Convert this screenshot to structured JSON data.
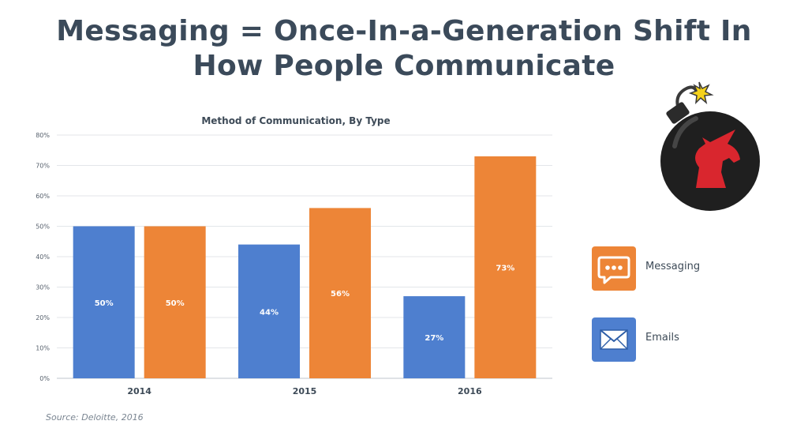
{
  "headline": {
    "line1": "Messaging = Once-In-a-Generation Shift In",
    "line2": "How People Communicate"
  },
  "source": "Source: Deloitte, 2016",
  "logo": {
    "icon": "unicorn-bomb-icon"
  },
  "colors": {
    "emails": "#4e7fcf",
    "messaging": "#ed8537",
    "headline": "#3b4a5a"
  },
  "chart_data": {
    "type": "bar",
    "title": "Method of Communication, By Type",
    "categories": [
      "2014",
      "2015",
      "2016"
    ],
    "series": [
      {
        "name": "Emails",
        "values": [
          50,
          44,
          27
        ],
        "labels": [
          "50%",
          "44%",
          "27%"
        ],
        "color": "#4e7fcf",
        "icon": "envelope-icon"
      },
      {
        "name": "Messaging",
        "values": [
          50,
          56,
          73
        ],
        "labels": [
          "50%",
          "56%",
          "73%"
        ],
        "color": "#ed8537",
        "icon": "chat-bubble-icon"
      }
    ],
    "ylim": [
      0,
      80
    ],
    "yticks": [
      0,
      10,
      20,
      30,
      40,
      50,
      60,
      70,
      80
    ],
    "ytick_labels": [
      "0%",
      "10%",
      "20%",
      "30%",
      "40%",
      "50%",
      "60%",
      "70%",
      "80%"
    ],
    "grid": true,
    "legend_position": "right"
  }
}
